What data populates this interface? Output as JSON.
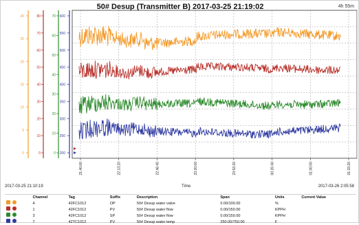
{
  "header": {
    "title": "50# Desup (Transmitter B) 2017-03-25 21:19:02",
    "duration": "4h 55m"
  },
  "axis_scales": [
    {
      "color": "#f39a28",
      "ticks": [
        "30",
        "25",
        "20",
        "15",
        "10",
        "5",
        "0"
      ]
    },
    {
      "color": "#b8302a",
      "ticks": [
        "80",
        "70",
        "60",
        "50",
        "40",
        "30",
        "20",
        "10",
        "0"
      ]
    },
    {
      "color": "#2e8b2e",
      "ticks": [
        "70",
        "60",
        "50",
        "40",
        "30",
        "20",
        "10",
        "0"
      ]
    },
    {
      "color": "#2f3aa0",
      "ticks": [
        "600",
        "550",
        "500",
        "450",
        "400",
        "350",
        "300",
        "250",
        "200"
      ]
    }
  ],
  "time_ticks": [
    "21:40:00",
    "22:13:20",
    "22:46:40",
    "23:20:00",
    "23:53:20",
    "00:26:40",
    "01:00:00",
    "01:33:20"
  ],
  "time_start": "2017-03-25 21:10:19",
  "time_end": "2017-03-26 2:05:58",
  "time_label": "Time",
  "legend": {
    "headers": [
      "Channel",
      "Tag",
      "Suffix",
      "Description",
      "Span",
      "Units",
      "Current Value"
    ],
    "rows": [
      {
        "color": "#f39a28",
        "channel": "4",
        "tag": "42FC1012",
        "suffix": "OP",
        "description": "50# Desup water valve",
        "span": "0.00/100.00",
        "units": "%",
        "current": ""
      },
      {
        "color": "#b8302a",
        "channel": "1",
        "tag": "42FC1012",
        "suffix": "PV",
        "description": "50# Desup water flow",
        "span": "0.00/150.00",
        "units": "KPPH",
        "current": ""
      },
      {
        "color": "#2e8b2e",
        "channel": "3",
        "tag": "42FC1012",
        "suffix": "SP",
        "description": "50# Desup water flow",
        "span": "0.00/150.00",
        "units": "KPPH",
        "current": ""
      },
      {
        "color": "#2f3aa0",
        "channel": "7",
        "tag": "42TC1012",
        "suffix": "PV",
        "description": "50# Desup water temp",
        "span": "250.00/750.00",
        "units": "F",
        "current": ""
      }
    ]
  },
  "traces": [
    {
      "color": "#f39a28"
    },
    {
      "color": "#b8302a"
    },
    {
      "color": "#2e8b2e"
    },
    {
      "color": "#2f3aa0"
    }
  ]
}
